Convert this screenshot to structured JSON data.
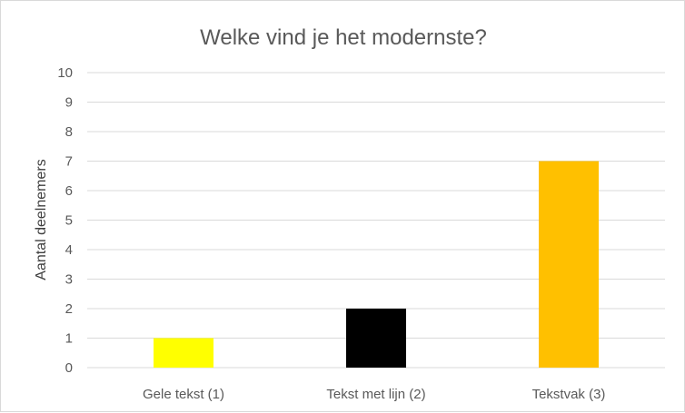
{
  "chart_data": {
    "type": "bar",
    "title": "Welke vind je het modernste?",
    "xlabel": "",
    "ylabel": "Aantal deelnemers",
    "categories": [
      "Gele tekst (1)",
      "Tekst met lijn (2)",
      "Tekstvak (3)"
    ],
    "values": [
      1,
      2,
      7
    ],
    "bar_colors": [
      "#ffff00",
      "#000000",
      "#ffc000"
    ],
    "ylim": [
      0,
      10
    ],
    "yticks": [
      "0",
      "1",
      "2",
      "3",
      "4",
      "5",
      "6",
      "7",
      "8",
      "9",
      "10"
    ],
    "grid": true,
    "legend": "none"
  },
  "colors": {
    "gridline": "#d9d9d9",
    "text": "#595959"
  }
}
